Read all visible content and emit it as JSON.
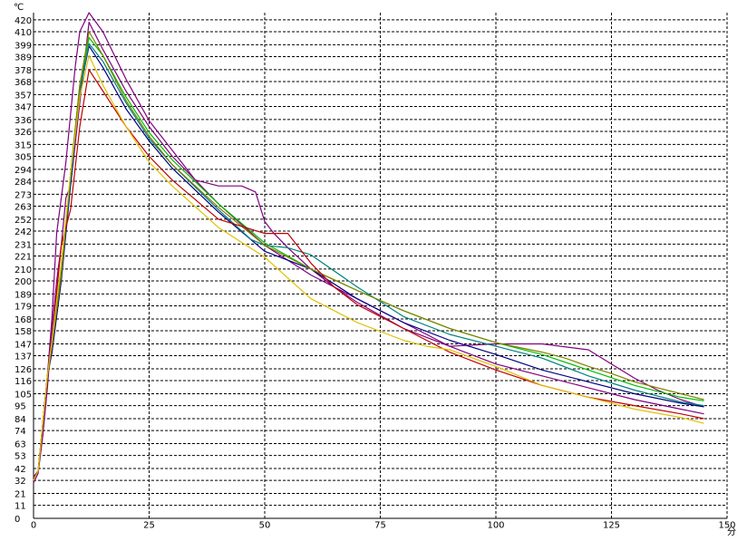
{
  "chart_data": {
    "type": "line",
    "title": "",
    "ylabel": "℃",
    "xlabel": "分",
    "xlim": [
      0,
      150
    ],
    "ylim": [
      0,
      426
    ],
    "grid": true,
    "x_ticks": [
      "0",
      "25",
      "50",
      "75",
      "100",
      "125",
      "150"
    ],
    "x_tick_values": [
      0,
      25,
      50,
      75,
      100,
      125,
      150
    ],
    "y_ticks": [
      "0",
      "11",
      "21",
      "32",
      "42",
      "53",
      "63",
      "74",
      "84",
      "95",
      "105",
      "116",
      "126",
      "137",
      "147",
      "158",
      "168",
      "179",
      "189",
      "200",
      "210",
      "221",
      "231",
      "242",
      "252",
      "263",
      "273",
      "284",
      "294",
      "305",
      "315",
      "326",
      "336",
      "347",
      "357",
      "368",
      "378",
      "389",
      "399",
      "410",
      "420"
    ],
    "y_tick_values": [
      0,
      11,
      21,
      32,
      42,
      53,
      63,
      74,
      84,
      95,
      105,
      116,
      126,
      137,
      147,
      158,
      168,
      179,
      189,
      200,
      210,
      221,
      231,
      242,
      252,
      263,
      273,
      284,
      294,
      305,
      315,
      326,
      336,
      347,
      357,
      368,
      378,
      389,
      399,
      410,
      420
    ],
    "series": [
      {
        "color": "#800080",
        "x": [
          0,
          1,
          2,
          3,
          4,
          5,
          7,
          9,
          10,
          12,
          15,
          20,
          25,
          30,
          35,
          40,
          45,
          48,
          50,
          52,
          55,
          60,
          65,
          70,
          80,
          90,
          100,
          110,
          120,
          125,
          130,
          135,
          140,
          145
        ],
        "y": [
          35,
          40,
          70,
          120,
          170,
          240,
          300,
          380,
          410,
          426,
          410,
          370,
          335,
          310,
          285,
          280,
          280,
          275,
          250,
          240,
          228,
          210,
          195,
          182,
          160,
          145,
          147,
          147,
          142,
          130,
          118,
          108,
          100,
          94
        ]
      },
      {
        "color": "#800080",
        "x": [
          0,
          1,
          2,
          3,
          4,
          5,
          6,
          7,
          8,
          10,
          12,
          15,
          20,
          25,
          30,
          40,
          50,
          60,
          70,
          80,
          90,
          100,
          110,
          120,
          130,
          140,
          145
        ],
        "y": [
          30,
          38,
          70,
          110,
          160,
          200,
          230,
          270,
          280,
          350,
          418,
          395,
          360,
          330,
          305,
          265,
          230,
          205,
          185,
          165,
          145,
          130,
          120,
          110,
          100,
          92,
          88
        ]
      },
      {
        "color": "#000080",
        "x": [
          0,
          1,
          2,
          3,
          4,
          6,
          8,
          10,
          12,
          15,
          20,
          25,
          30,
          40,
          50,
          60,
          70,
          80,
          90,
          100,
          110,
          120,
          130,
          140,
          145
        ],
        "y": [
          32,
          40,
          80,
          120,
          140,
          200,
          280,
          360,
          398,
          380,
          345,
          318,
          295,
          258,
          225,
          210,
          185,
          165,
          150,
          138,
          125,
          115,
          105,
          97,
          94
        ]
      },
      {
        "color": "#00c000",
        "x": [
          0,
          1,
          2,
          3,
          4,
          6,
          8,
          10,
          12,
          15,
          20,
          25,
          30,
          40,
          50,
          60,
          70,
          80,
          90,
          100,
          110,
          120,
          130,
          140,
          145
        ],
        "y": [
          32,
          40,
          80,
          120,
          145,
          210,
          290,
          365,
          405,
          390,
          355,
          325,
          302,
          265,
          232,
          210,
          192,
          175,
          160,
          148,
          138,
          125,
          112,
          102,
          99
        ]
      },
      {
        "color": "#008080",
        "x": [
          0,
          1,
          2,
          3,
          4,
          6,
          8,
          10,
          12,
          15,
          20,
          25,
          30,
          40,
          47,
          50,
          55,
          60,
          70,
          80,
          90,
          100,
          110,
          120,
          130,
          140,
          145
        ],
        "y": [
          32,
          40,
          80,
          120,
          148,
          205,
          285,
          360,
          400,
          385,
          350,
          320,
          298,
          260,
          235,
          230,
          228,
          222,
          195,
          170,
          155,
          145,
          135,
          120,
          108,
          98,
          95
        ]
      },
      {
        "color": "#808000",
        "x": [
          0,
          1,
          2,
          3,
          4,
          6,
          8,
          10,
          12,
          15,
          20,
          25,
          30,
          40,
          50,
          60,
          70,
          80,
          90,
          100,
          110,
          115,
          120,
          125,
          130,
          140,
          145
        ],
        "y": [
          32,
          40,
          80,
          120,
          145,
          205,
          290,
          365,
          410,
          390,
          352,
          322,
          298,
          262,
          230,
          210,
          192,
          175,
          160,
          148,
          140,
          135,
          128,
          122,
          115,
          105,
          100
        ]
      },
      {
        "color": "#c00000",
        "x": [
          0,
          1,
          2,
          3,
          4,
          6,
          8,
          10,
          12,
          15,
          20,
          25,
          30,
          40,
          50,
          55,
          60,
          65,
          70,
          80,
          90,
          100,
          110,
          120,
          130,
          140,
          145
        ],
        "y": [
          32,
          40,
          80,
          120,
          150,
          230,
          260,
          330,
          378,
          360,
          330,
          305,
          285,
          252,
          240,
          240,
          215,
          195,
          180,
          160,
          140,
          125,
          112,
          102,
          95,
          88,
          84
        ]
      },
      {
        "color": "#e0c000",
        "x": [
          0,
          1,
          2,
          3,
          4,
          6,
          8,
          10,
          12,
          15,
          20,
          25,
          30,
          40,
          50,
          60,
          70,
          80,
          85,
          90,
          100,
          110,
          120,
          130,
          140,
          145
        ],
        "y": [
          32,
          40,
          80,
          120,
          150,
          215,
          290,
          355,
          390,
          365,
          330,
          300,
          280,
          245,
          220,
          185,
          165,
          150,
          145,
          142,
          128,
          112,
          102,
          92,
          85,
          80
        ]
      }
    ]
  }
}
